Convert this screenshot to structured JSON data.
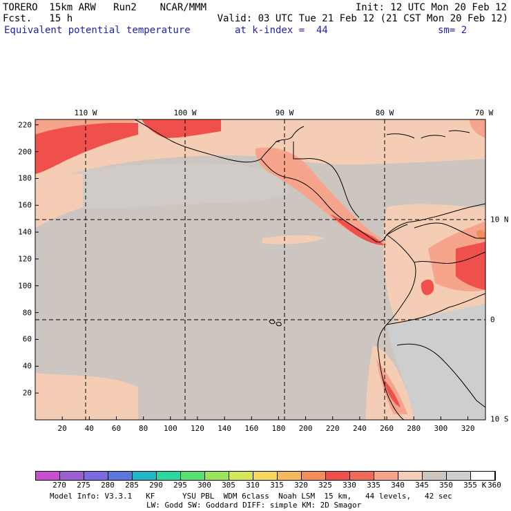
{
  "header": {
    "model": "TORERO  15km ARW   Run2    NCAR/MMM",
    "init": "Init: 12 UTC Mon 20 Feb 12",
    "fcst": "Fcst.   15 h",
    "valid": "Valid: 03 UTC Tue 21 Feb 12 (21 CST Mon 20 Feb 12)",
    "field": "Equivalent potential temperature",
    "level": "at k-index =  44",
    "smooth": "sm= 2"
  },
  "map": {
    "lon_labels": [
      "110 W",
      "100 W",
      "90 W",
      "80 W",
      "70 W"
    ],
    "lat_labels": [
      "10 N",
      "0",
      "10 S"
    ],
    "x_ticks": [
      "20",
      "40",
      "60",
      "80",
      "100",
      "120",
      "140",
      "160",
      "180",
      "200",
      "220",
      "240",
      "260",
      "280",
      "300",
      "320"
    ],
    "y_ticks": [
      "20",
      "40",
      "60",
      "80",
      "100",
      "120",
      "140",
      "160",
      "180",
      "200",
      "220"
    ],
    "grid_x_range": [
      0,
      333
    ],
    "grid_y_range": [
      0,
      224
    ],
    "background_fill": "#cdc6c0"
  },
  "colorbar": {
    "labels": [
      "270",
      "275",
      "280",
      "285",
      "290",
      "295",
      "300",
      "305",
      "310",
      "315",
      "320",
      "325",
      "330",
      "335",
      "340",
      "345",
      "350",
      "355",
      "360"
    ],
    "unit": "K",
    "colors": [
      "#c84fd0",
      "#9a5fd0",
      "#7a6be0",
      "#5b78e0",
      "#22b6c6",
      "#2ad8a0",
      "#55e070",
      "#9ae45a",
      "#d4e85a",
      "#f6d860",
      "#f6b85c",
      "#f48c5c",
      "#f0504c",
      "#f06a5a",
      "#f6a48c",
      "#f4cdb4",
      "#cdc6c0",
      "#cecece",
      "#ffffff"
    ]
  },
  "footer": {
    "line1": "Model Info: V3.3.1   KF      YSU PBL  WDM 6class  Noah LSM  15 km,   44 levels,   42 sec",
    "line2": "LW: Godd SW: Goddard DIFF: simple KM: 2D Smagor"
  }
}
